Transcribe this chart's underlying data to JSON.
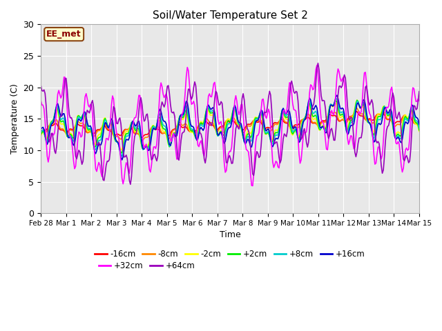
{
  "title": "Soil/Water Temperature Set 2",
  "xlabel": "Time",
  "ylabel": "Temperature (C)",
  "ylim": [
    0,
    30
  ],
  "xlim_days": 15,
  "background_color": "#e8e8e8",
  "fig_background": "#ffffff",
  "annotation_text": "EE_met",
  "annotation_bg": "#ffffcc",
  "annotation_border": "#8b4513",
  "xtick_labels": [
    "Feb 28",
    "Mar 1",
    "Mar 2",
    "Mar 3",
    "Mar 4",
    "Mar 5",
    "Mar 6",
    "Mar 7",
    "Mar 8",
    "Mar 9",
    "Mar 10",
    "Mar 11",
    "Mar 12",
    "Mar 13",
    "Mar 14",
    "Mar 15"
  ],
  "ytick_labels": [
    0,
    5,
    10,
    15,
    20,
    25,
    30
  ],
  "series_names": [
    "-16cm",
    "-8cm",
    "-2cm",
    "+2cm",
    "+8cm",
    "+16cm",
    "+32cm",
    "+64cm"
  ],
  "series_colors": [
    "#ff0000",
    "#ff8800",
    "#ffff00",
    "#00ee00",
    "#00cccc",
    "#0000cc",
    "#ff00ff",
    "#9900bb"
  ],
  "series_lw": [
    1.2,
    1.2,
    1.2,
    1.2,
    1.2,
    1.2,
    1.2,
    1.2
  ],
  "grid_color": "#ffffff",
  "n_pts": 360,
  "trend_base": [
    13.5,
    13.3,
    13.1,
    13.0,
    13.0,
    13.2,
    13.5,
    13.8,
    14.0,
    14.3,
    14.5,
    14.7,
    15.0,
    15.2,
    15.0,
    14.8
  ],
  "amplitudes": [
    0.6,
    0.9,
    1.8,
    2.0,
    2.2,
    2.5,
    5.5,
    5.0
  ],
  "depth_lag": [
    0.0,
    0.05,
    0.12,
    0.15,
    0.18,
    0.22,
    0.35,
    0.5
  ]
}
